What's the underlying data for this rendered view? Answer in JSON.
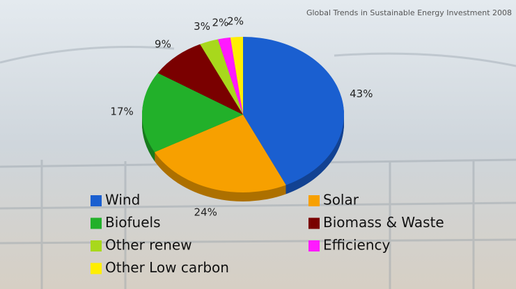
{
  "chart_data": {
    "type": "pie",
    "title": "Global Trends in Sustainable Energy Investment 2008",
    "categories": [
      "Wind",
      "Solar",
      "Biofuels",
      "Biomass & Waste",
      "Other renew",
      "Efficiency",
      "Other Low carbon"
    ],
    "values": [
      43,
      24,
      17,
      9,
      3,
      2,
      2
    ],
    "value_labels": [
      "43%",
      "24%",
      "17%",
      "9%",
      "3%",
      "2%",
      "2%"
    ],
    "colors": [
      "#1a5fd0",
      "#f7a000",
      "#22b02a",
      "#7a0000",
      "#a8d81c",
      "#ff1aff",
      "#ffee00"
    ]
  }
}
